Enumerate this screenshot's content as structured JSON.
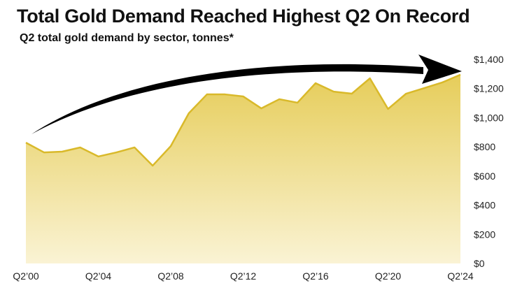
{
  "chart_data": {
    "type": "area",
    "title": "Total Gold Demand Reached Highest Q2 On Record",
    "subtitle": "Q2 total gold demand by sector, tonnes*",
    "x": [
      "Q2’00",
      "Q2’01",
      "Q2’02",
      "Q2’03",
      "Q2’04",
      "Q2’05",
      "Q2’06",
      "Q2’07",
      "Q2’08",
      "Q2’09",
      "Q2’10",
      "Q2’11",
      "Q2’12",
      "Q2’13",
      "Q2’14",
      "Q2’15",
      "Q2’16",
      "Q2’17",
      "Q2’18",
      "Q2’19",
      "Q2’20",
      "Q2’21",
      "Q2’22",
      "Q2’23",
      "Q2’24"
    ],
    "values": [
      829,
      762,
      767,
      796,
      734,
      762,
      796,
      671,
      805,
      1031,
      1160,
      1160,
      1146,
      1064,
      1127,
      1103,
      1237,
      1179,
      1165,
      1270,
      1060,
      1165,
      1203,
      1242,
      1295
    ],
    "x_tick_labels": [
      "Q2’00",
      "Q2’04",
      "Q2’08",
      "Q2’12",
      "Q2’16",
      "Q2’20",
      "Q2’24"
    ],
    "y_tick_labels": [
      "$0",
      "$200",
      "$400",
      "$600",
      "$800",
      "$1,000",
      "$1,200",
      "$1,400"
    ],
    "y_ticks": [
      0,
      200,
      400,
      600,
      800,
      1000,
      1200,
      1400
    ],
    "ylim": [
      0,
      1400
    ],
    "y_axis_side": "right",
    "grid": false,
    "annotation": "curved black arrow rising from Q2’00 to Q2’24",
    "colors": {
      "line": "#d9b92a",
      "fill_top": "#e6cd5a",
      "fill_bottom": "#faf3d4",
      "arrow": "#000000"
    }
  }
}
